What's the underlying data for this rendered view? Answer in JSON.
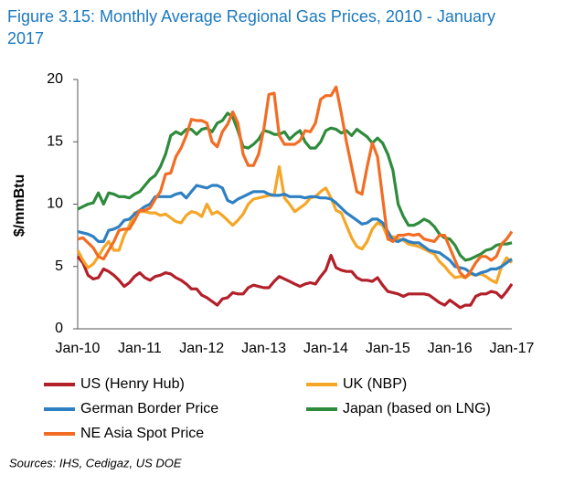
{
  "chart_data": {
    "type": "line",
    "title": "Figure 3.15: Monthly Average Regional Gas Prices, 2010 - January 2017",
    "y_label": "$/mmBtu",
    "source": "Sources: IHS, Cedigaz, US DOE",
    "categories": [
      "Jan-10",
      null,
      null,
      null,
      null,
      null,
      null,
      null,
      null,
      null,
      null,
      null,
      "Jan-11",
      null,
      null,
      null,
      null,
      null,
      null,
      null,
      null,
      null,
      null,
      null,
      "Jan-12",
      null,
      null,
      null,
      null,
      null,
      null,
      null,
      null,
      null,
      null,
      null,
      "Jan-13",
      null,
      null,
      null,
      null,
      null,
      null,
      null,
      null,
      null,
      null,
      null,
      "Jan-14",
      null,
      null,
      null,
      null,
      null,
      null,
      null,
      null,
      null,
      null,
      null,
      "Jan-15",
      null,
      null,
      null,
      null,
      null,
      null,
      null,
      null,
      null,
      null,
      null,
      "Jan-16",
      null,
      null,
      null,
      null,
      null,
      null,
      null,
      null,
      null,
      null,
      null,
      "Jan-17"
    ],
    "ylim": [
      0,
      20
    ],
    "yticks": [
      0,
      5,
      10,
      15,
      20
    ],
    "grid": false,
    "series": [
      {
        "name": "US (Henry Hub)",
        "color": "#b2202a",
        "values": [
          5.8,
          5.3,
          4.3,
          4.0,
          4.1,
          4.8,
          4.6,
          4.3,
          3.9,
          3.4,
          3.7,
          4.2,
          4.5,
          4.1,
          3.9,
          4.2,
          4.3,
          4.5,
          4.4,
          4.1,
          3.9,
          3.6,
          3.2,
          3.2,
          2.7,
          2.5,
          2.2,
          1.9,
          2.4,
          2.5,
          2.9,
          2.8,
          2.8,
          3.3,
          3.5,
          3.4,
          3.3,
          3.3,
          3.8,
          4.2,
          4.0,
          3.8,
          3.6,
          3.4,
          3.6,
          3.7,
          3.6,
          4.2,
          4.7,
          5.9,
          4.9,
          4.7,
          4.6,
          4.6,
          4.1,
          3.9,
          3.9,
          3.8,
          4.1,
          3.5,
          3.0,
          2.9,
          2.8,
          2.6,
          2.8,
          2.8,
          2.8,
          2.8,
          2.7,
          2.4,
          2.1,
          1.9,
          2.3,
          2.0,
          1.7,
          1.9,
          1.9,
          2.6,
          2.8,
          2.8,
          3.0,
          2.9,
          2.5,
          3.0,
          3.6
        ]
      },
      {
        "name": "UK (NBP)",
        "color": "#f5a626",
        "values": [
          6.3,
          5.5,
          4.9,
          5.2,
          5.8,
          6.5,
          7.0,
          6.3,
          6.3,
          7.5,
          8.3,
          9.3,
          9.4,
          9.4,
          9.3,
          9.3,
          9.1,
          9.2,
          8.9,
          8.6,
          8.5,
          9.1,
          9.4,
          9.3,
          9.0,
          10.0,
          9.2,
          9.4,
          9.1,
          8.7,
          8.3,
          8.7,
          9.2,
          10.0,
          10.4,
          10.5,
          10.6,
          10.7,
          10.7,
          13.0,
          10.5,
          10.0,
          9.4,
          9.7,
          10.0,
          10.5,
          10.6,
          11.0,
          11.3,
          10.5,
          9.5,
          9.3,
          8.3,
          7.3,
          6.6,
          6.4,
          7.0,
          8.0,
          8.5,
          8.3,
          7.3,
          7.4,
          7.2,
          7.1,
          6.8,
          6.7,
          6.6,
          6.4,
          6.2,
          6.0,
          5.4,
          5.0,
          4.5,
          4.1,
          4.2,
          4.1,
          4.4,
          4.3,
          4.4,
          4.2,
          3.9,
          3.7,
          5.0,
          5.7,
          5.3
        ]
      },
      {
        "name": "German Border Price",
        "color": "#2f80c3",
        "values": [
          7.8,
          7.7,
          7.6,
          7.4,
          7.0,
          7.0,
          7.9,
          8.0,
          8.2,
          8.7,
          8.8,
          9.2,
          9.5,
          9.8,
          10.0,
          10.6,
          10.6,
          10.6,
          10.6,
          10.8,
          10.9,
          10.5,
          11.0,
          11.5,
          11.4,
          11.3,
          11.5,
          11.5,
          11.3,
          10.3,
          10.1,
          10.4,
          10.6,
          10.8,
          11.0,
          11.0,
          11.0,
          10.8,
          10.7,
          10.7,
          10.8,
          10.6,
          10.6,
          10.6,
          10.5,
          10.6,
          10.6,
          10.5,
          10.5,
          10.4,
          10.1,
          9.7,
          9.3,
          9.0,
          8.7,
          8.4,
          8.5,
          8.8,
          8.8,
          8.5,
          7.8,
          7.1,
          7.0,
          7.2,
          7.0,
          6.9,
          6.9,
          6.6,
          6.3,
          6.2,
          6.1,
          5.8,
          5.5,
          5.0,
          4.9,
          4.8,
          4.5,
          4.3,
          4.5,
          4.6,
          4.8,
          4.8,
          5.0,
          5.3,
          5.6
        ]
      },
      {
        "name": "Japan (based on LNG)",
        "color": "#2e8b3b",
        "values": [
          9.6,
          9.8,
          10.0,
          10.1,
          10.9,
          10.0,
          10.9,
          10.8,
          10.6,
          10.6,
          10.5,
          10.8,
          11.0,
          11.5,
          12.0,
          12.3,
          13.0,
          14.0,
          15.5,
          15.8,
          15.6,
          16.0,
          16.0,
          15.6,
          16.0,
          16.1,
          15.8,
          16.5,
          16.7,
          17.3,
          17.0,
          15.9,
          14.6,
          14.5,
          14.8,
          15.2,
          15.9,
          15.8,
          15.6,
          15.6,
          15.8,
          15.2,
          15.6,
          15.9,
          15.0,
          14.5,
          14.5,
          15.0,
          15.9,
          16.1,
          16.0,
          15.7,
          15.9,
          15.5,
          16.0,
          15.7,
          15.4,
          14.9,
          15.3,
          14.9,
          14.0,
          12.7,
          10.0,
          9.0,
          8.3,
          8.3,
          8.5,
          8.8,
          8.6,
          8.2,
          7.6,
          7.3,
          7.2,
          6.7,
          5.9,
          5.5,
          5.6,
          5.8,
          6.0,
          6.3,
          6.4,
          6.7,
          6.8,
          6.8,
          6.9
        ]
      },
      {
        "name": "NE Asia Spot Price",
        "color": "#f26d24",
        "values": [
          7.2,
          7.3,
          6.9,
          6.5,
          5.8,
          5.6,
          6.3,
          7.0,
          7.9,
          8.0,
          8.0,
          8.7,
          9.5,
          9.5,
          9.7,
          10.4,
          11.0,
          12.4,
          12.5,
          13.8,
          14.5,
          15.5,
          16.8,
          16.7,
          16.7,
          16.5,
          15.0,
          14.6,
          15.8,
          16.4,
          17.4,
          16.5,
          14.0,
          13.1,
          13.1,
          14.0,
          16.0,
          18.8,
          18.9,
          15.5,
          14.8,
          14.8,
          14.8,
          15.1,
          15.9,
          15.8,
          16.5,
          18.4,
          18.7,
          18.7,
          19.4,
          17.3,
          15.0,
          13.0,
          11.0,
          10.8,
          13.0,
          14.9,
          13.8,
          10.5,
          7.2,
          7.0,
          7.5,
          7.5,
          7.6,
          7.5,
          7.6,
          7.2,
          7.1,
          7.0,
          7.5,
          7.5,
          6.5,
          5.5,
          4.5,
          4.1,
          4.6,
          5.3,
          5.8,
          5.8,
          5.5,
          5.8,
          6.8,
          7.2,
          7.8
        ]
      }
    ]
  }
}
